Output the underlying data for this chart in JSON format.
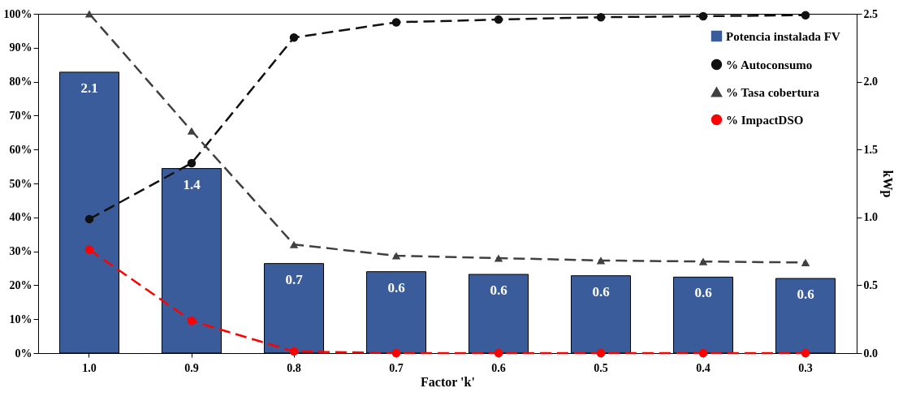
{
  "chart_data": {
    "type": "bar",
    "xlabel": "Factor 'k'",
    "y2label": "kWp",
    "categories": [
      "1.0",
      "0.9",
      "0.8",
      "0.7",
      "0.6",
      "0.5",
      "0.4",
      "0.3"
    ],
    "ylim": [
      0,
      100
    ],
    "yticks": [
      {
        "value": 0,
        "label": "0%"
      },
      {
        "value": 10,
        "label": "10%"
      },
      {
        "value": 20,
        "label": "20%"
      },
      {
        "value": 30,
        "label": "30%"
      },
      {
        "value": 40,
        "label": "40%"
      },
      {
        "value": 50,
        "label": "50%"
      },
      {
        "value": 60,
        "label": "60%"
      },
      {
        "value": 70,
        "label": "70%"
      },
      {
        "value": 80,
        "label": "80%"
      },
      {
        "value": 90,
        "label": "90%"
      },
      {
        "value": 100,
        "label": "100%"
      }
    ],
    "y2lim": [
      0,
      2.5
    ],
    "y2ticks": [
      {
        "value": 0,
        "label": "0.0"
      },
      {
        "value": 0.5,
        "label": "0.5"
      },
      {
        "value": 1,
        "label": "1.0"
      },
      {
        "value": 1.5,
        "label": "1.5"
      },
      {
        "value": 2,
        "label": "2.0"
      },
      {
        "value": 2.5,
        "label": "2.5"
      }
    ],
    "grid": false,
    "legend": "top right",
    "series": [
      {
        "name": "Potencia instalada FV",
        "axis": "y2",
        "color": "#3b5c9a",
        "values": [
          2.07,
          1.36,
          0.66,
          0.6,
          0.58,
          0.57,
          0.56,
          0.55
        ],
        "value_labels": [
          "2.1",
          "1.4",
          "0.7",
          "0.6",
          "0.6",
          "0.6",
          "0.6",
          "0.6"
        ]
      },
      {
        "name": "% Autoconsumo",
        "type": "line",
        "color": "#111111",
        "marker": "circle",
        "line_style": "dashed",
        "values": [
          39.5,
          56,
          93,
          97.5,
          98.3,
          99,
          99.3,
          99.6
        ]
      },
      {
        "name": "% Tasa cobertura",
        "type": "line",
        "color": "#404040",
        "marker": "triangle",
        "line_style": "dashed",
        "values": [
          100,
          65.5,
          32,
          28.7,
          28,
          27.3,
          27,
          26.7
        ]
      },
      {
        "name": "% ImpactDSO",
        "type": "line",
        "color": "#ff0000",
        "marker": "circle",
        "line_style": "dashed",
        "values": [
          30.5,
          9.5,
          0.5,
          0,
          0,
          0,
          0,
          0
        ]
      }
    ]
  }
}
